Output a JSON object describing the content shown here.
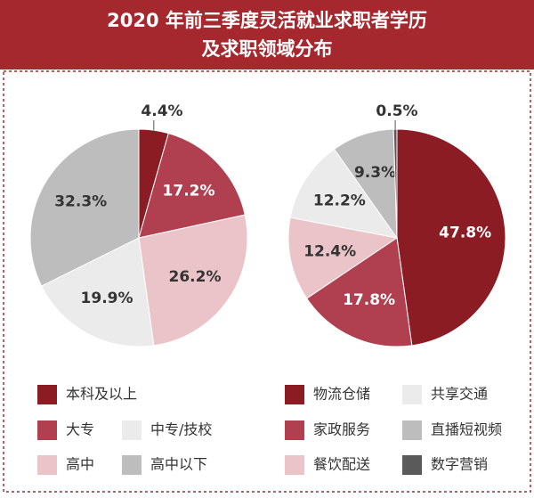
{
  "title": [
    "2020 年前三季度灵活就业求职者学历",
    "及求职领域分布"
  ],
  "chart_data": [
    {
      "type": "pie",
      "categories": [
        "本科及以上",
        "大专",
        "高中",
        "中专/技校",
        "高中以下"
      ],
      "values": [
        4.4,
        17.2,
        26.2,
        19.9,
        32.3
      ],
      "value_labels": [
        "4.4%",
        "17.2%",
        "26.2%",
        "19.9%",
        "32.3%"
      ],
      "colors": [
        "#8c1c24",
        "#b0404f",
        "#eac4c8",
        "#ebebeb",
        "#bdbdbd"
      ]
    },
    {
      "type": "pie",
      "categories": [
        "物流仓储",
        "家政服务",
        "餐饮配送",
        "共享交通",
        "直播短视频",
        "数字营销"
      ],
      "values": [
        47.8,
        17.8,
        12.4,
        12.2,
        9.3,
        0.5
      ],
      "value_labels": [
        "47.8%",
        "17.8%",
        "12.4%",
        "12.2%",
        "9.3%",
        "0.5%"
      ],
      "colors": [
        "#8c1c24",
        "#b0404f",
        "#eac4c8",
        "#ebebeb",
        "#bdbdbd",
        "#5a5a5a"
      ]
    }
  ]
}
